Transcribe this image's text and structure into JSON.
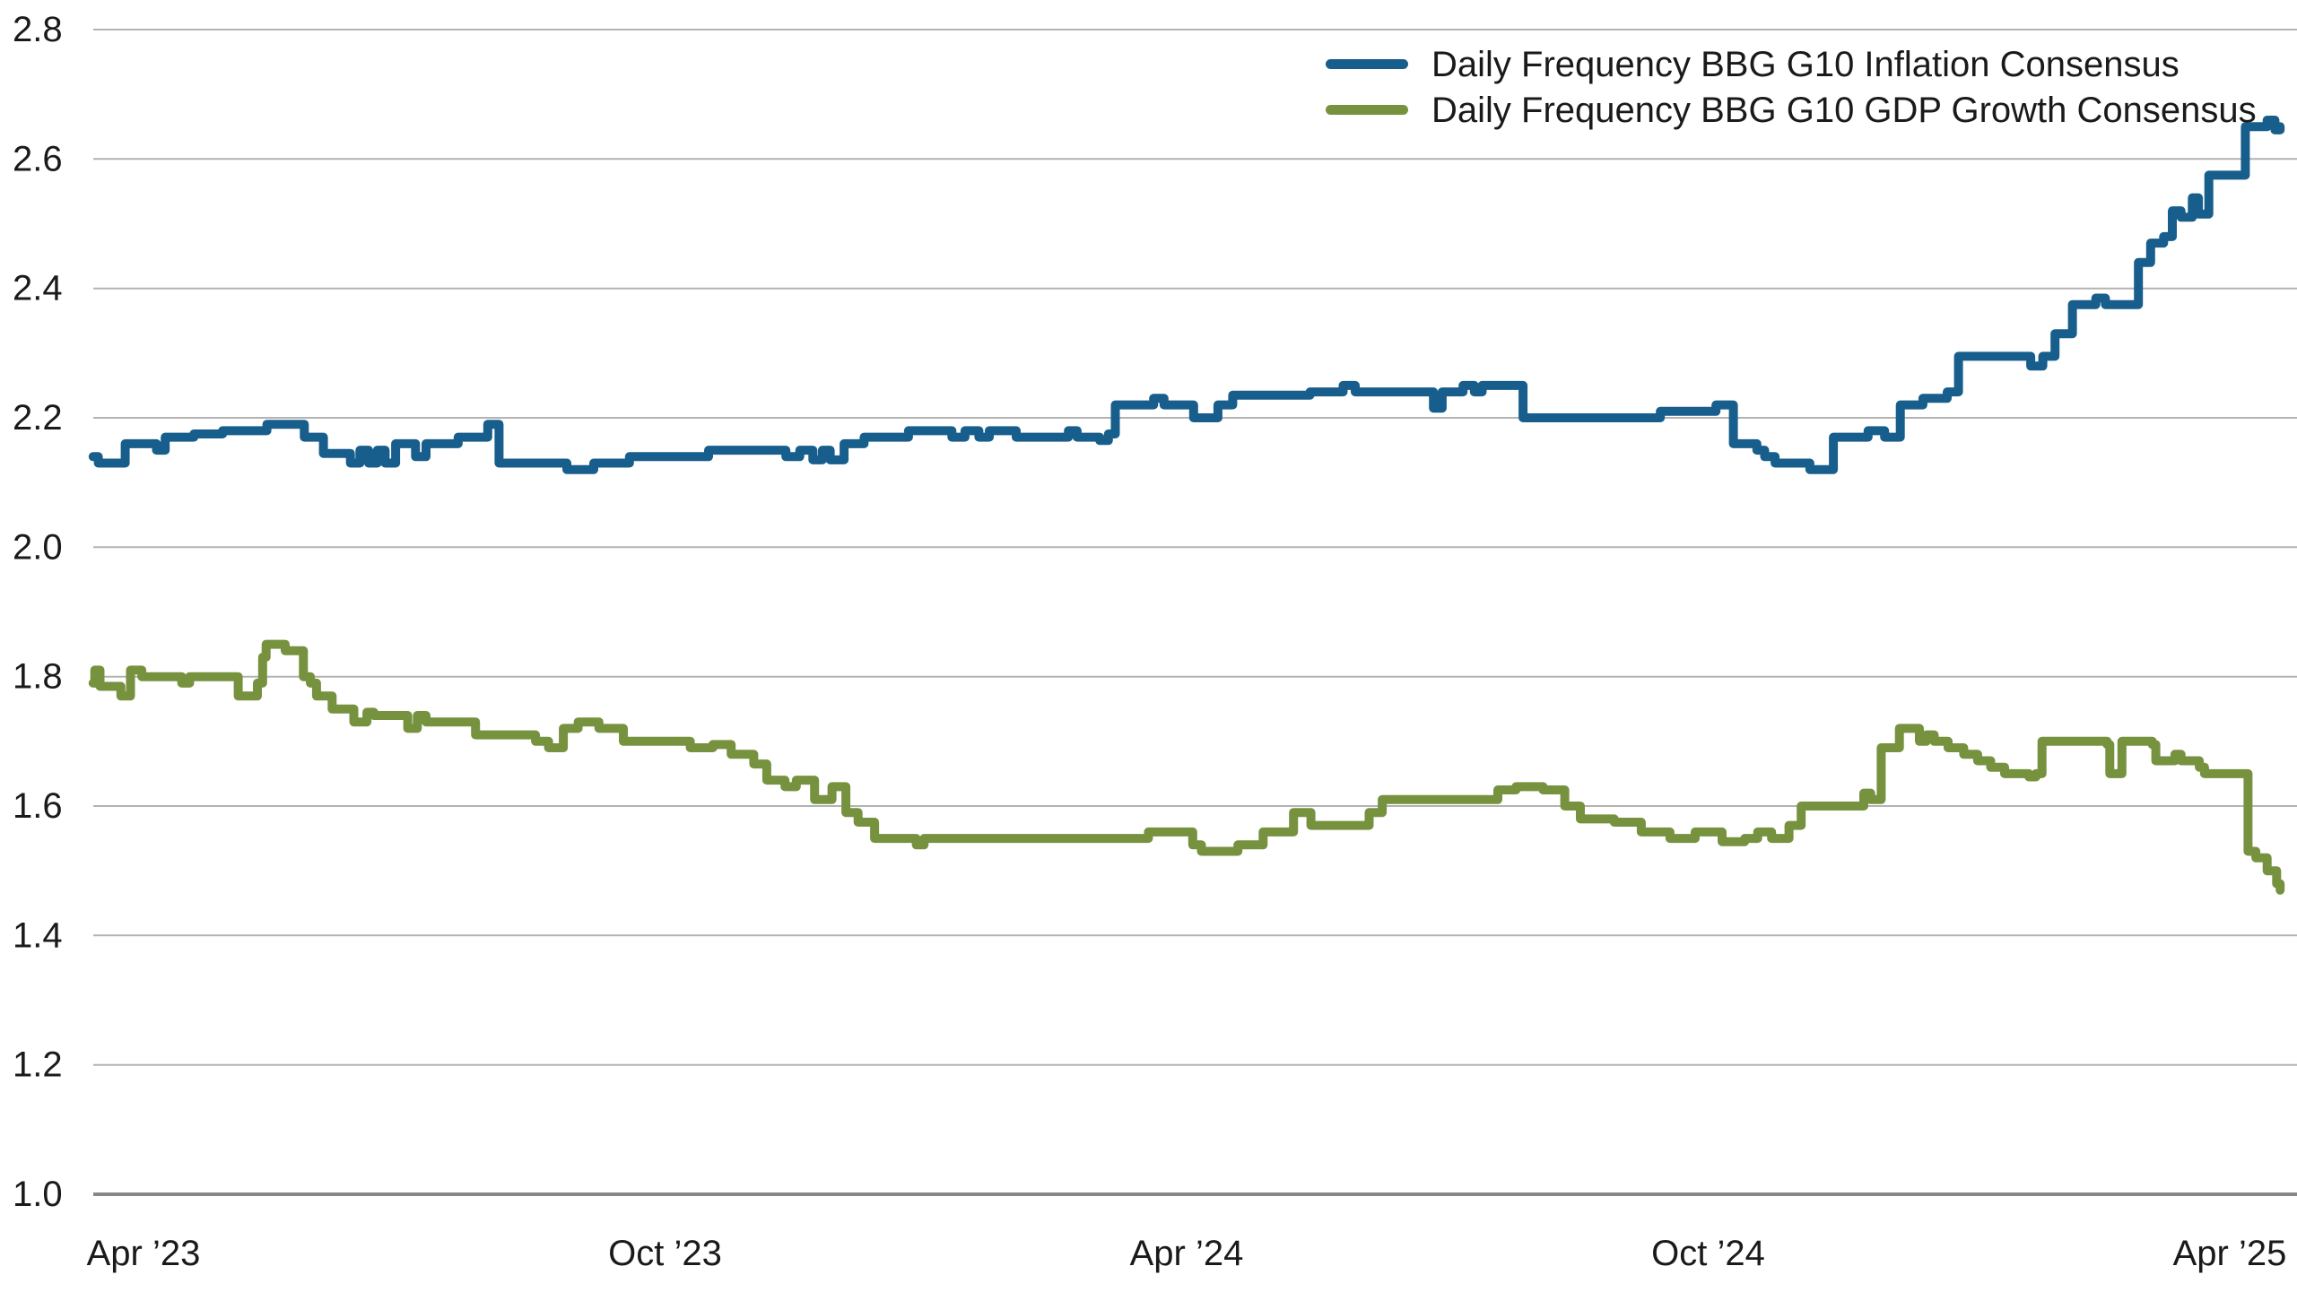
{
  "page": {
    "background": "#ffffff",
    "text_color": "#1a1a1a"
  },
  "axes": {
    "y_tick_labels": [
      "2.8",
      "2.6",
      "2.4",
      "2.2",
      "2.0",
      "1.8",
      "1.6",
      "1.4",
      "1.2",
      "1.0"
    ],
    "x_tick_labels": [
      "Apr ’23",
      "Oct ’23",
      "Apr ’24",
      "Oct ’24",
      "Apr ’25"
    ],
    "gridline_color": "#b3b3b3",
    "axis_line_color": "#878787"
  },
  "chart_data": {
    "type": "line",
    "interpolation": "step-after",
    "title": "",
    "xlabel": "",
    "ylabel": "",
    "x_unit": "months since Apr 2023",
    "x_ticks": [
      {
        "label": "Apr ’23",
        "t": 0
      },
      {
        "label": "Oct ’23",
        "t": 6
      },
      {
        "label": "Apr ’24",
        "t": 12
      },
      {
        "label": "Oct ’24",
        "t": 18
      },
      {
        "label": "Apr ’25",
        "t": 24
      }
    ],
    "x_range": [
      -0.58,
      24.76
    ],
    "ylim": [
      1.0,
      2.8
    ],
    "y_tick_step": 0.2,
    "grid": true,
    "legend_position": "top-right",
    "series": [
      {
        "name": "Daily Frequency BBG G10 Inflation Consensus",
        "color": "#175E8C",
        "points": [
          [
            -0.58,
            2.14
          ],
          [
            -0.52,
            2.13
          ],
          [
            -0.21,
            2.16
          ],
          [
            0.15,
            2.15
          ],
          [
            0.25,
            2.17
          ],
          [
            0.58,
            2.175
          ],
          [
            0.91,
            2.18
          ],
          [
            1.42,
            2.19
          ],
          [
            1.85,
            2.17
          ],
          [
            2.07,
            2.145
          ],
          [
            2.38,
            2.13
          ],
          [
            2.49,
            2.15
          ],
          [
            2.59,
            2.13
          ],
          [
            2.69,
            2.15
          ],
          [
            2.78,
            2.13
          ],
          [
            2.9,
            2.16
          ],
          [
            3.13,
            2.14
          ],
          [
            3.25,
            2.16
          ],
          [
            3.62,
            2.17
          ],
          [
            3.96,
            2.19
          ],
          [
            4.09,
            2.13
          ],
          [
            4.87,
            2.12
          ],
          [
            5.18,
            2.13
          ],
          [
            5.59,
            2.14
          ],
          [
            6.5,
            2.15
          ],
          [
            7.39,
            2.14
          ],
          [
            7.55,
            2.15
          ],
          [
            7.7,
            2.135
          ],
          [
            7.81,
            2.15
          ],
          [
            7.9,
            2.135
          ],
          [
            8.06,
            2.16
          ],
          [
            8.29,
            2.17
          ],
          [
            8.8,
            2.18
          ],
          [
            9.3,
            2.17
          ],
          [
            9.45,
            2.18
          ],
          [
            9.61,
            2.17
          ],
          [
            9.73,
            2.18
          ],
          [
            10.04,
            2.17
          ],
          [
            10.64,
            2.18
          ],
          [
            10.74,
            2.17
          ],
          [
            11.0,
            2.165
          ],
          [
            11.1,
            2.175
          ],
          [
            11.18,
            2.22
          ],
          [
            11.62,
            2.23
          ],
          [
            11.74,
            2.22
          ],
          [
            12.08,
            2.2
          ],
          [
            12.36,
            2.22
          ],
          [
            12.53,
            2.235
          ],
          [
            13.42,
            2.24
          ],
          [
            13.8,
            2.25
          ],
          [
            13.94,
            2.24
          ],
          [
            14.84,
            2.215
          ],
          [
            14.94,
            2.24
          ],
          [
            15.18,
            2.25
          ],
          [
            15.31,
            2.24
          ],
          [
            15.4,
            2.25
          ],
          [
            15.87,
            2.2
          ],
          [
            17.45,
            2.21
          ],
          [
            18.09,
            2.22
          ],
          [
            18.29,
            2.16
          ],
          [
            18.56,
            2.15
          ],
          [
            18.65,
            2.14
          ],
          [
            18.77,
            2.13
          ],
          [
            19.17,
            2.12
          ],
          [
            19.44,
            2.17
          ],
          [
            19.84,
            2.18
          ],
          [
            20.03,
            2.17
          ],
          [
            20.21,
            2.22
          ],
          [
            20.47,
            2.23
          ],
          [
            20.75,
            2.24
          ],
          [
            20.88,
            2.295
          ],
          [
            21.71,
            2.28
          ],
          [
            21.85,
            2.295
          ],
          [
            21.99,
            2.33
          ],
          [
            22.19,
            2.375
          ],
          [
            22.46,
            2.385
          ],
          [
            22.57,
            2.375
          ],
          [
            22.95,
            2.44
          ],
          [
            23.09,
            2.47
          ],
          [
            23.24,
            2.48
          ],
          [
            23.34,
            2.52
          ],
          [
            23.44,
            2.51
          ],
          [
            23.57,
            2.54
          ],
          [
            23.64,
            2.515
          ],
          [
            23.76,
            2.575
          ],
          [
            24.18,
            2.65
          ],
          [
            24.43,
            2.66
          ],
          [
            24.52,
            2.645
          ],
          [
            24.58,
            2.65
          ]
        ]
      },
      {
        "name": "Daily Frequency BBG G10 GDP Growth Consensus",
        "color": "#76923F",
        "points": [
          [
            -0.58,
            1.79
          ],
          [
            -0.56,
            1.81
          ],
          [
            -0.5,
            1.785
          ],
          [
            -0.26,
            1.77
          ],
          [
            -0.15,
            1.81
          ],
          [
            -0.02,
            1.8
          ],
          [
            0.44,
            1.79
          ],
          [
            0.53,
            1.8
          ],
          [
            1.09,
            1.77
          ],
          [
            1.31,
            1.79
          ],
          [
            1.37,
            1.83
          ],
          [
            1.41,
            1.85
          ],
          [
            1.63,
            1.84
          ],
          [
            1.84,
            1.8
          ],
          [
            1.92,
            1.79
          ],
          [
            1.99,
            1.77
          ],
          [
            2.17,
            1.75
          ],
          [
            2.42,
            1.73
          ],
          [
            2.57,
            1.745
          ],
          [
            2.65,
            1.74
          ],
          [
            3.04,
            1.72
          ],
          [
            3.15,
            1.74
          ],
          [
            3.25,
            1.73
          ],
          [
            3.82,
            1.71
          ],
          [
            4.51,
            1.7
          ],
          [
            4.66,
            1.69
          ],
          [
            4.83,
            1.72
          ],
          [
            5.0,
            1.73
          ],
          [
            5.24,
            1.72
          ],
          [
            5.52,
            1.7
          ],
          [
            6.29,
            1.69
          ],
          [
            6.55,
            1.695
          ],
          [
            6.76,
            1.68
          ],
          [
            7.02,
            1.665
          ],
          [
            7.17,
            1.64
          ],
          [
            7.38,
            1.63
          ],
          [
            7.51,
            1.64
          ],
          [
            7.72,
            1.61
          ],
          [
            7.92,
            1.63
          ],
          [
            8.08,
            1.59
          ],
          [
            8.22,
            1.575
          ],
          [
            8.41,
            1.55
          ],
          [
            8.89,
            1.54
          ],
          [
            8.98,
            1.55
          ],
          [
            11.56,
            1.56
          ],
          [
            12.07,
            1.54
          ],
          [
            12.17,
            1.53
          ],
          [
            12.59,
            1.54
          ],
          [
            12.88,
            1.56
          ],
          [
            13.23,
            1.59
          ],
          [
            13.43,
            1.57
          ],
          [
            14.1,
            1.59
          ],
          [
            14.25,
            1.61
          ],
          [
            15.58,
            1.625
          ],
          [
            15.79,
            1.63
          ],
          [
            16.1,
            1.625
          ],
          [
            16.35,
            1.6
          ],
          [
            16.53,
            1.58
          ],
          [
            16.92,
            1.575
          ],
          [
            17.23,
            1.56
          ],
          [
            17.56,
            1.55
          ],
          [
            17.85,
            1.56
          ],
          [
            18.16,
            1.545
          ],
          [
            18.42,
            1.55
          ],
          [
            18.57,
            1.56
          ],
          [
            18.73,
            1.55
          ],
          [
            18.93,
            1.57
          ],
          [
            19.07,
            1.6
          ],
          [
            19.79,
            1.62
          ],
          [
            19.87,
            1.61
          ],
          [
            19.99,
            1.69
          ],
          [
            20.2,
            1.72
          ],
          [
            20.43,
            1.7
          ],
          [
            20.51,
            1.71
          ],
          [
            20.6,
            1.7
          ],
          [
            20.76,
            1.69
          ],
          [
            20.94,
            1.68
          ],
          [
            21.1,
            1.67
          ],
          [
            21.25,
            1.66
          ],
          [
            21.41,
            1.65
          ],
          [
            21.69,
            1.645
          ],
          [
            21.77,
            1.65
          ],
          [
            21.84,
            1.7
          ],
          [
            22.59,
            1.695
          ],
          [
            22.62,
            1.65
          ],
          [
            22.76,
            1.7
          ],
          [
            23.11,
            1.695
          ],
          [
            23.15,
            1.67
          ],
          [
            23.37,
            1.68
          ],
          [
            23.44,
            1.67
          ],
          [
            23.65,
            1.66
          ],
          [
            23.71,
            1.65
          ],
          [
            24.17,
            1.65
          ],
          [
            24.21,
            1.53
          ],
          [
            24.3,
            1.52
          ],
          [
            24.43,
            1.5
          ],
          [
            24.54,
            1.48
          ],
          [
            24.58,
            1.47
          ]
        ]
      }
    ]
  }
}
